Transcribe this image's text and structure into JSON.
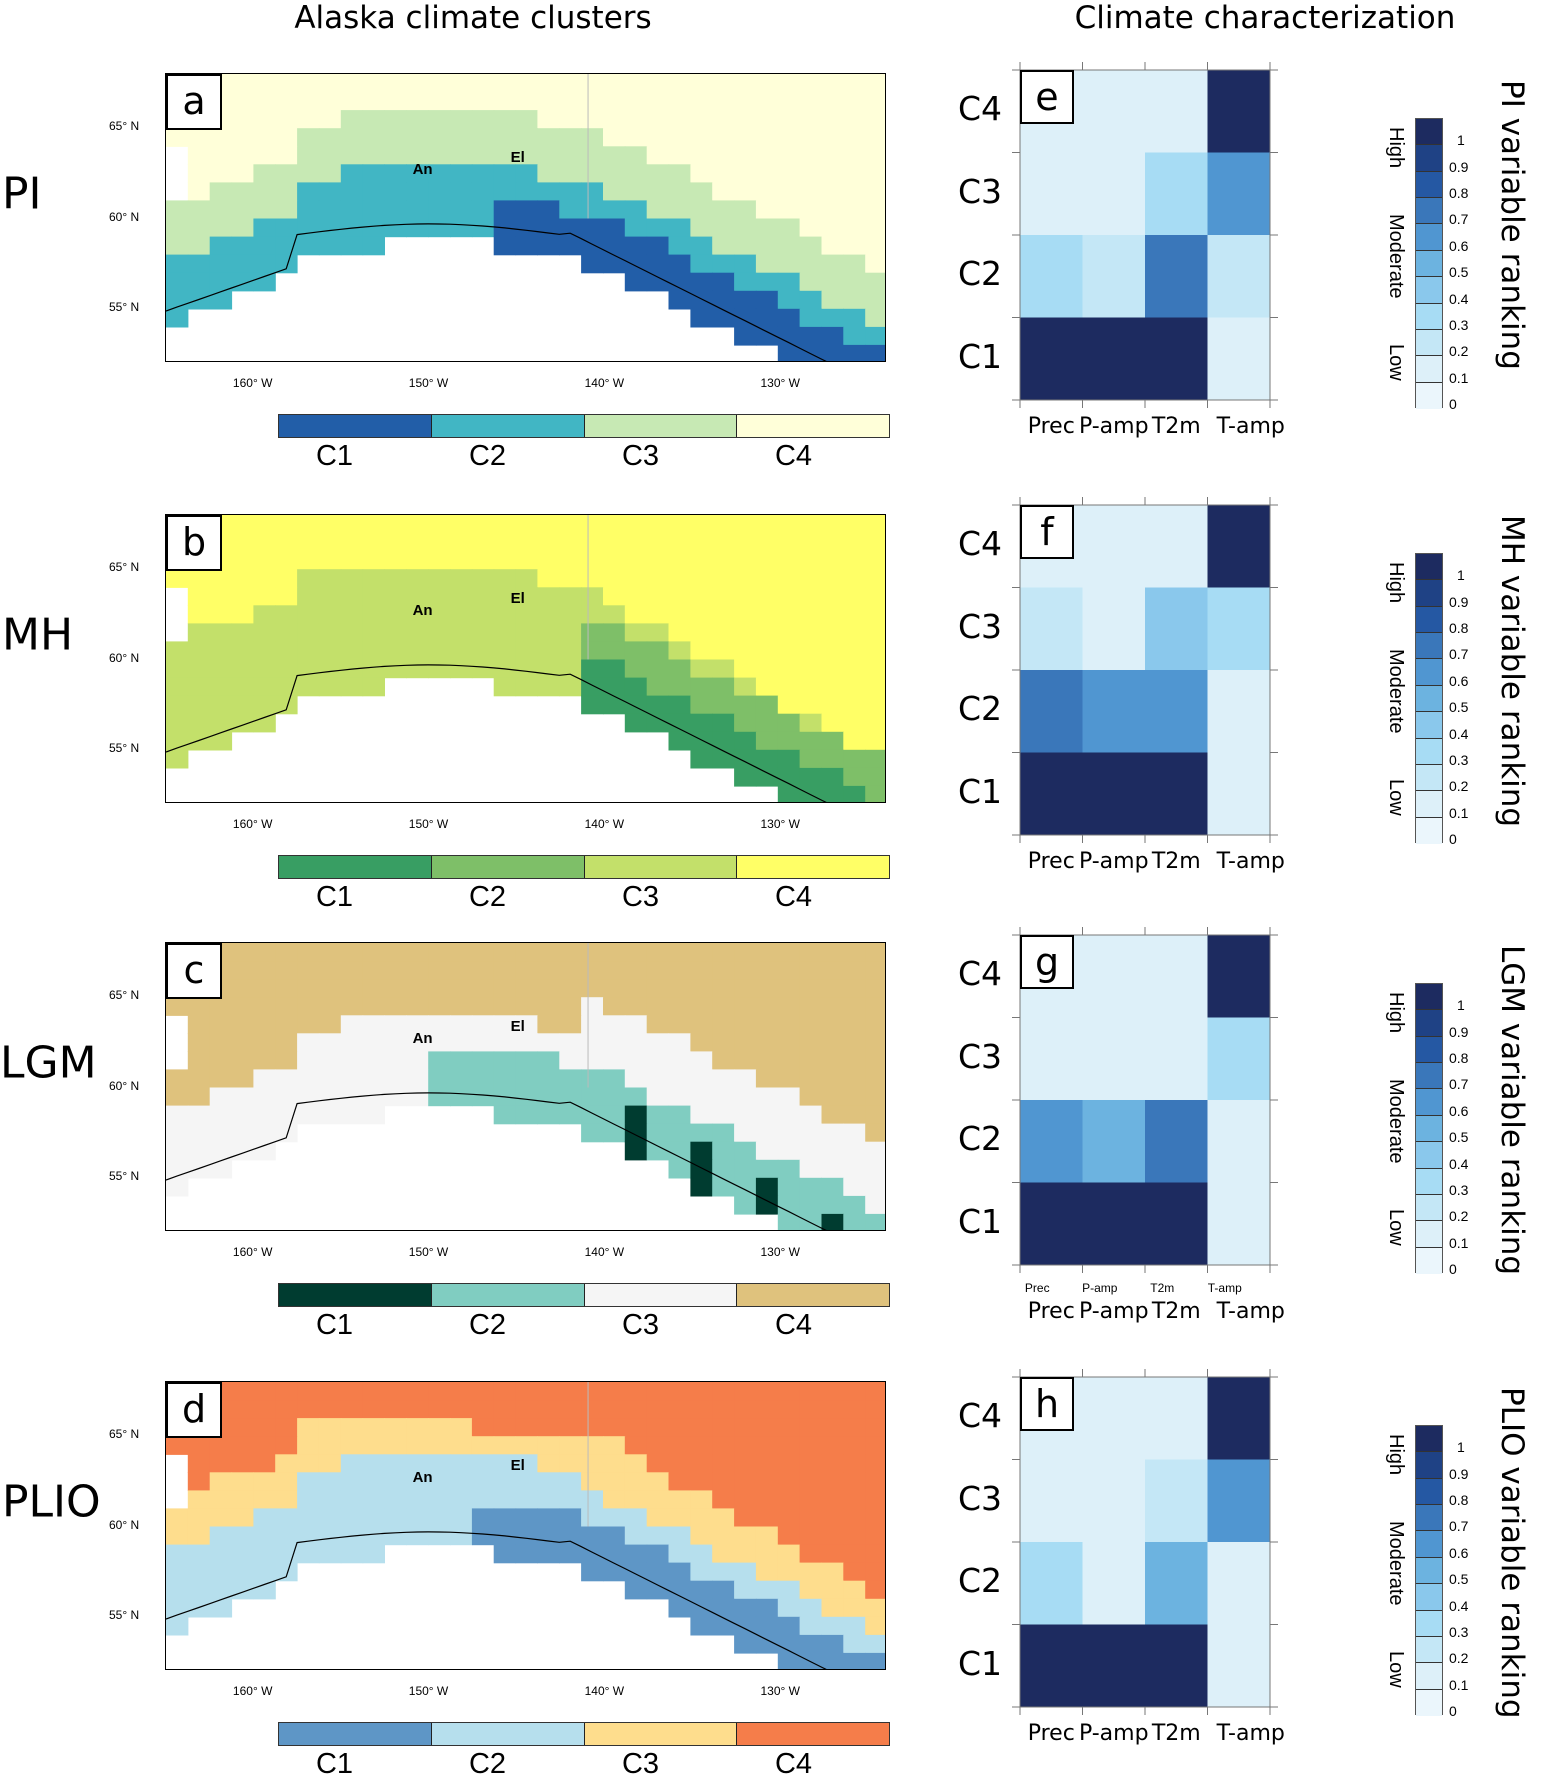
{
  "titles": {
    "left": "Alaska climate clusters",
    "right": "Climate characterization"
  },
  "map_axes": {
    "lat_labels": [
      "65° N",
      "60° N",
      "55° N"
    ],
    "lon_labels": [
      "160° W",
      "150° W",
      "140° W",
      "130° W"
    ],
    "cities": {
      "anchorage": "An",
      "elias": "El"
    }
  },
  "heatmap_axes": {
    "rows": [
      "C4",
      "C3",
      "C2",
      "C1"
    ],
    "cols": [
      "Prec",
      "P-amp",
      "T2m",
      "T-amp"
    ]
  },
  "ranking_colorbar": {
    "ticks": [
      "1",
      "0.9",
      "0.8",
      "0.7",
      "0.6",
      "0.5",
      "0.4",
      "0.3",
      "0.2",
      "0.1",
      "0"
    ],
    "words": [
      "High",
      "Moderate",
      "Low"
    ],
    "colors": [
      "#ebf6fc",
      "#ddf0f9",
      "#c4e7f6",
      "#a7dcf4",
      "#8ac8ec",
      "#6cb3e0",
      "#5096d1",
      "#3a77ba",
      "#2558a3",
      "#1f4285",
      "#1d2b60"
    ]
  },
  "cluster_labels": [
    "C1",
    "C2",
    "C3",
    "C4"
  ],
  "chart_data": [
    {
      "type": "heatmap-map",
      "panel": "a",
      "period": "PI",
      "legend": [
        "C1",
        "C2",
        "C3",
        "C4"
      ],
      "colors": [
        "#225ea8",
        "#41b6c4",
        "#c7e9b4",
        "#ffffd9"
      ],
      "lon_range": [
        -165,
        -124
      ],
      "lat_range": [
        52,
        68
      ]
    },
    {
      "type": "heatmap-map",
      "panel": "b",
      "period": "MH",
      "legend": [
        "C1",
        "C2",
        "C3",
        "C4"
      ],
      "colors": [
        "#389e63",
        "#7ebf68",
        "#c3e06a",
        "#ffff66"
      ],
      "lon_range": [
        -165,
        -124
      ],
      "lat_range": [
        52,
        68
      ]
    },
    {
      "type": "heatmap-map",
      "panel": "c",
      "period": "LGM",
      "legend": [
        "C1",
        "C2",
        "C3",
        "C4"
      ],
      "colors": [
        "#003c30",
        "#80cdc1",
        "#f5f5f5",
        "#dfc27d"
      ],
      "lon_range": [
        -165,
        -124
      ],
      "lat_range": [
        52,
        68
      ]
    },
    {
      "type": "heatmap-map",
      "panel": "d",
      "period": "PLIO",
      "legend": [
        "C1",
        "C2",
        "C3",
        "C4"
      ],
      "colors": [
        "#5e96c6",
        "#b6dfed",
        "#fedd8d",
        "#f57d4a"
      ],
      "lon_range": [
        -165,
        -124
      ],
      "lat_range": [
        52,
        68
      ]
    },
    {
      "type": "heatmap",
      "panel": "e",
      "title": "PI variable ranking",
      "rows": [
        "C4",
        "C3",
        "C2",
        "C1"
      ],
      "cols": [
        "Prec",
        "P-amp",
        "T2m",
        "T-amp"
      ],
      "values": [
        [
          0.05,
          0.05,
          0.05,
          1.0
        ],
        [
          0.1,
          0.1,
          0.3,
          0.6
        ],
        [
          0.3,
          0.2,
          0.7,
          0.2
        ],
        [
          1.0,
          1.0,
          1.0,
          0.05
        ]
      ],
      "zlim": [
        0,
        1
      ]
    },
    {
      "type": "heatmap",
      "panel": "f",
      "title": "MH variable ranking",
      "rows": [
        "C4",
        "C3",
        "C2",
        "C1"
      ],
      "cols": [
        "Prec",
        "P-amp",
        "T2m",
        "T-amp"
      ],
      "values": [
        [
          0.05,
          0.05,
          0.05,
          1.0
        ],
        [
          0.2,
          0.05,
          0.4,
          0.3
        ],
        [
          0.7,
          0.6,
          0.6,
          0.05
        ],
        [
          1.0,
          1.0,
          1.0,
          0.05
        ]
      ],
      "zlim": [
        0,
        1
      ]
    },
    {
      "type": "heatmap",
      "panel": "g",
      "title": "LGM variable ranking",
      "rows": [
        "C4",
        "C3",
        "C2",
        "C1"
      ],
      "cols": [
        "Prec",
        "P-amp",
        "T2m",
        "T-amp"
      ],
      "small_col_labels": [
        "Prec",
        "P-amp",
        "T2m",
        "T-amp"
      ],
      "values": [
        [
          0.05,
          0.05,
          0.05,
          1.0
        ],
        [
          0.1,
          0.05,
          0.05,
          0.3
        ],
        [
          0.6,
          0.5,
          0.7,
          0.05
        ],
        [
          1.0,
          1.0,
          1.0,
          0.05
        ]
      ],
      "zlim": [
        0,
        1
      ]
    },
    {
      "type": "heatmap",
      "panel": "h",
      "title": "PLIO variable ranking",
      "rows": [
        "C4",
        "C3",
        "C2",
        "C1"
      ],
      "cols": [
        "Prec",
        "P-amp",
        "T2m",
        "T-amp"
      ],
      "values": [
        [
          0.05,
          0.05,
          0.05,
          1.0
        ],
        [
          0.1,
          0.05,
          0.2,
          0.6
        ],
        [
          0.3,
          0.1,
          0.5,
          0.05
        ],
        [
          1.0,
          1.0,
          1.0,
          0.05
        ]
      ],
      "zlim": [
        0,
        1
      ]
    }
  ]
}
